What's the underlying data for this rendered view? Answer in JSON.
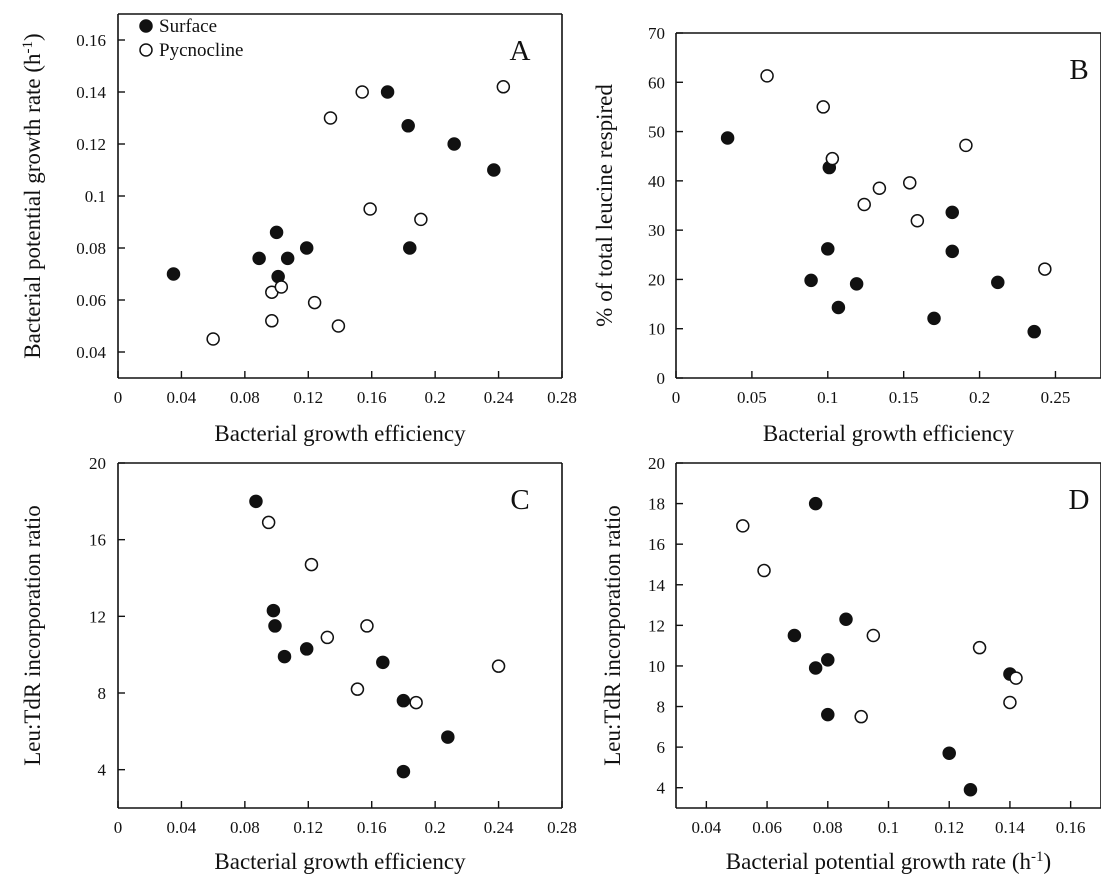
{
  "legend": {
    "surface": "Surface",
    "pycnocline": "Pycnocline"
  },
  "colors": {
    "surface": "#111111",
    "pycnocline": "#ffffff",
    "axis": "#111111"
  },
  "chart_data": [
    {
      "id": "A",
      "type": "scatter",
      "label": "A",
      "xlabel": "Bacterial growth efficiency",
      "ylabel": "Bacterial potential growth rate (h",
      "ylabel_sup": "-1",
      "ylabel_tail": ")",
      "xlabel_sup": "",
      "xlabel_tail": "",
      "xlim": [
        0,
        0.28
      ],
      "ylim": [
        0.03,
        0.17
      ],
      "xticks": [
        0,
        0.04,
        0.08,
        0.12,
        0.16,
        0.2,
        0.24,
        0.28
      ],
      "xticklabels": [
        "0",
        "0.04",
        "0.08",
        "0.12",
        "0.16",
        "0.2",
        "0.24",
        "0.28"
      ],
      "yticks": [
        0.04,
        0.06,
        0.08,
        0.1,
        0.12,
        0.14,
        0.16
      ],
      "yticklabels": [
        "0.04",
        "0.06",
        "0.08",
        "0.1",
        "0.12",
        "0.14",
        "0.16"
      ],
      "legend": "top-left",
      "series": [
        {
          "name": "Surface",
          "points": [
            [
              0.035,
              0.07
            ],
            [
              0.089,
              0.076
            ],
            [
              0.1,
              0.086
            ],
            [
              0.101,
              0.069
            ],
            [
              0.107,
              0.076
            ],
            [
              0.119,
              0.08
            ],
            [
              0.17,
              0.14
            ],
            [
              0.183,
              0.127
            ],
            [
              0.184,
              0.08
            ],
            [
              0.212,
              0.12
            ],
            [
              0.237,
              0.11
            ]
          ]
        },
        {
          "name": "Pycnocline",
          "points": [
            [
              0.06,
              0.045
            ],
            [
              0.097,
              0.063
            ],
            [
              0.097,
              0.052
            ],
            [
              0.103,
              0.065
            ],
            [
              0.124,
              0.059
            ],
            [
              0.134,
              0.13
            ],
            [
              0.139,
              0.05
            ],
            [
              0.154,
              0.14
            ],
            [
              0.159,
              0.095
            ],
            [
              0.191,
              0.091
            ],
            [
              0.243,
              0.142
            ]
          ]
        }
      ]
    },
    {
      "id": "B",
      "type": "scatter",
      "label": "B",
      "xlabel": "Bacterial growth efficiency",
      "ylabel": "% of total leucine respired",
      "ylabel_sup": "",
      "ylabel_tail": "",
      "xlabel_sup": "",
      "xlabel_tail": "",
      "xlim": [
        0,
        0.28
      ],
      "ylim": [
        0,
        70
      ],
      "xticks": [
        0,
        0.05,
        0.1,
        0.15,
        0.2,
        0.25
      ],
      "xticklabels": [
        "0",
        "0.05",
        "0.1",
        "0.15",
        "0.2",
        "0.25"
      ],
      "yticks": [
        0,
        10,
        20,
        30,
        40,
        50,
        60,
        70
      ],
      "yticklabels": [
        "0",
        "10",
        "20",
        "30",
        "40",
        "50",
        "60",
        "70"
      ],
      "series": [
        {
          "name": "Surface",
          "points": [
            [
              0.034,
              48.7
            ],
            [
              0.089,
              19.8
            ],
            [
              0.1,
              26.2
            ],
            [
              0.101,
              42.7
            ],
            [
              0.107,
              14.3
            ],
            [
              0.119,
              19.1
            ],
            [
              0.17,
              12.1
            ],
            [
              0.182,
              33.6
            ],
            [
              0.182,
              25.7
            ],
            [
              0.212,
              19.4
            ],
            [
              0.236,
              9.4
            ]
          ]
        },
        {
          "name": "Pycnocline",
          "points": [
            [
              0.06,
              61.3
            ],
            [
              0.097,
              55.0
            ],
            [
              0.103,
              44.5
            ],
            [
              0.124,
              35.2
            ],
            [
              0.134,
              38.5
            ],
            [
              0.154,
              39.6
            ],
            [
              0.159,
              31.9
            ],
            [
              0.191,
              47.2
            ],
            [
              0.243,
              22.1
            ]
          ]
        }
      ]
    },
    {
      "id": "C",
      "type": "scatter",
      "label": "C",
      "xlabel": "Bacterial growth efficiency",
      "ylabel": "Leu:TdR incorporation ratio",
      "ylabel_sup": "",
      "ylabel_tail": "",
      "xlabel_sup": "",
      "xlabel_tail": "",
      "xlim": [
        0,
        0.28
      ],
      "ylim": [
        2,
        20
      ],
      "xticks": [
        0,
        0.04,
        0.08,
        0.12,
        0.16,
        0.2,
        0.24,
        0.28
      ],
      "xticklabels": [
        "0",
        "0.04",
        "0.08",
        "0.12",
        "0.16",
        "0.2",
        "0.24",
        "0.28"
      ],
      "yticks": [
        4,
        8,
        12,
        16,
        20
      ],
      "yticklabels": [
        "4",
        "8",
        "12",
        "16",
        "20"
      ],
      "series": [
        {
          "name": "Surface",
          "points": [
            [
              0.087,
              18.0
            ],
            [
              0.098,
              12.3
            ],
            [
              0.099,
              11.5
            ],
            [
              0.105,
              9.9
            ],
            [
              0.119,
              10.3
            ],
            [
              0.167,
              9.6
            ],
            [
              0.18,
              7.6
            ],
            [
              0.18,
              3.9
            ],
            [
              0.208,
              5.7
            ]
          ]
        },
        {
          "name": "Pycnocline",
          "points": [
            [
              0.095,
              16.9
            ],
            [
              0.122,
              14.7
            ],
            [
              0.132,
              10.9
            ],
            [
              0.151,
              8.2
            ],
            [
              0.157,
              11.5
            ],
            [
              0.188,
              7.5
            ],
            [
              0.24,
              9.4
            ]
          ]
        }
      ]
    },
    {
      "id": "D",
      "type": "scatter",
      "label": "D",
      "xlabel": "Bacterial potential growth rate (h",
      "xlabel_sup": "-1",
      "xlabel_tail": ")",
      "ylabel": "Leu:TdR incorporation ratio",
      "ylabel_sup": "",
      "ylabel_tail": "",
      "xlim": [
        0.03,
        0.17
      ],
      "ylim": [
        3,
        20
      ],
      "xticks": [
        0.04,
        0.06,
        0.08,
        0.1,
        0.12,
        0.14,
        0.16
      ],
      "xticklabels": [
        "0.04",
        "0.06",
        "0.08",
        "0.1",
        "0.12",
        "0.14",
        "0.16"
      ],
      "yticks": [
        4,
        6,
        8,
        10,
        12,
        14,
        16,
        18,
        20
      ],
      "yticklabels": [
        "4",
        "6",
        "8",
        "10",
        "12",
        "14",
        "16",
        "18",
        "20"
      ],
      "series": [
        {
          "name": "Surface",
          "points": [
            [
              0.069,
              11.5
            ],
            [
              0.076,
              18.0
            ],
            [
              0.076,
              9.9
            ],
            [
              0.08,
              10.3
            ],
            [
              0.08,
              7.6
            ],
            [
              0.086,
              12.3
            ],
            [
              0.12,
              5.7
            ],
            [
              0.127,
              3.9
            ],
            [
              0.14,
              9.6
            ]
          ]
        },
        {
          "name": "Pycnocline",
          "points": [
            [
              0.052,
              16.9
            ],
            [
              0.059,
              14.7
            ],
            [
              0.091,
              7.5
            ],
            [
              0.095,
              11.5
            ],
            [
              0.13,
              10.9
            ],
            [
              0.14,
              8.2
            ],
            [
              0.142,
              9.4
            ]
          ]
        }
      ]
    }
  ]
}
